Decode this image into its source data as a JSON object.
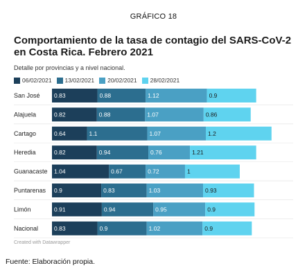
{
  "figure_label": "GRÁFICO 18",
  "credit": "Created with Datawrapper",
  "source": "Fuente: Elaboración propia.",
  "colors": [
    "#1c3f5a",
    "#2c6e8f",
    "#4aa0c4",
    "#5fd3ef"
  ],
  "chart_data": {
    "type": "bar",
    "stacked": true,
    "orientation": "horizontal",
    "title": "Comportamiento de la tasa de contagio del SARS-CoV-2 en Costa Rica. Febrero 2021",
    "subtitle": "Detalle por provincias y a nivel nacional.",
    "legend_position": "top-left",
    "categories": [
      "San José",
      "Alajuela",
      "Cartago",
      "Heredia",
      "Guanacaste",
      "Puntarenas",
      "Limón",
      "Nacional"
    ],
    "series": [
      {
        "name": "06/02/2021",
        "values": [
          0.83,
          0.82,
          0.64,
          0.82,
          1.04,
          0.9,
          0.91,
          0.83
        ]
      },
      {
        "name": "13/02/2021",
        "values": [
          0.88,
          0.88,
          1.1,
          0.94,
          0.67,
          0.83,
          0.94,
          0.9
        ]
      },
      {
        "name": "20/02/2021",
        "values": [
          1.12,
          1.07,
          1.07,
          0.76,
          0.72,
          1.03,
          0.95,
          1.02
        ]
      },
      {
        "name": "28/02/2021",
        "values": [
          0.9,
          0.86,
          1.2,
          1.21,
          1,
          0.93,
          0.9,
          0.9
        ]
      }
    ],
    "value_labels": [
      [
        "0.83",
        "0.82",
        "0.64",
        "0.82",
        "1.04",
        "0.9",
        "0.91",
        "0.83"
      ],
      [
        "0.88",
        "0.88",
        "1.1",
        "0.94",
        "0.67",
        "0.83",
        "0.94",
        "0.9"
      ],
      [
        "1.12",
        "1.07",
        "1.07",
        "0.76",
        "0.72",
        "1.03",
        "0.95",
        "1.02"
      ],
      [
        "0.9",
        "0.86",
        "1.2",
        "1.21",
        "1",
        "0.93",
        "0.9",
        "0.9"
      ]
    ],
    "xlim": [
      0,
      4.2
    ]
  }
}
